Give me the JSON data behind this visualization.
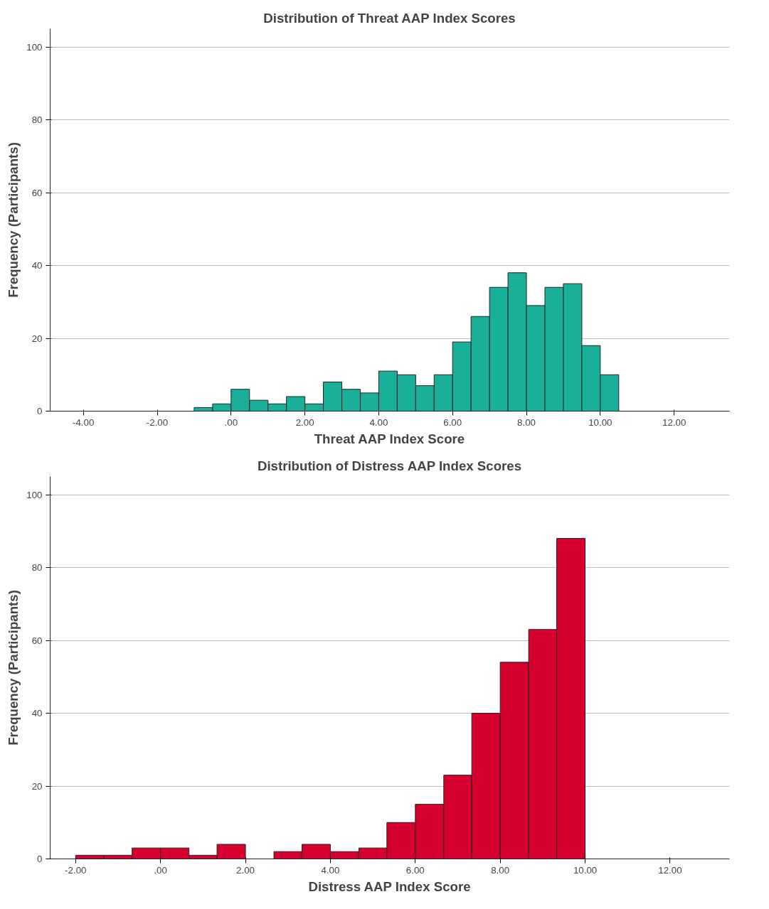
{
  "chart_data": [
    {
      "type": "histogram",
      "title": "Distribution of Threat AAP Index Scores",
      "xlabel": "Threat AAP Index Score",
      "ylabel": "Frequency (Participants)",
      "bins": [
        -1,
        -0.5,
        0,
        0.5,
        1,
        1.5,
        2,
        2.5,
        3,
        3.5,
        4,
        4.5,
        5,
        5.5,
        6,
        6.5,
        7,
        7.5,
        8,
        8.5,
        9,
        9.5,
        10,
        10.5
      ],
      "values": [
        1,
        2,
        6,
        3,
        2,
        4,
        2,
        8,
        6,
        5,
        11,
        10,
        7,
        10,
        19,
        26,
        34,
        38,
        29,
        34,
        35,
        18,
        10
      ],
      "color": "#1aaf98",
      "xlim": [
        -4.9,
        13.5
      ],
      "ylim": [
        0,
        105
      ],
      "xticks": [
        {
          "value": -4,
          "label": "-4.00"
        },
        {
          "value": -2,
          "label": "-2.00"
        },
        {
          "value": 0,
          "label": ".00"
        },
        {
          "value": 2,
          "label": "2.00"
        },
        {
          "value": 4,
          "label": "4.00"
        },
        {
          "value": 6,
          "label": "6.00"
        },
        {
          "value": 8,
          "label": "8.00"
        },
        {
          "value": 10,
          "label": "10.00"
        },
        {
          "value": 12,
          "label": "12.00"
        }
      ],
      "yticks": [
        0,
        20,
        40,
        60,
        80,
        100
      ],
      "grid": "y"
    },
    {
      "type": "histogram",
      "title": "Distribution of Distress AAP Index Scores",
      "xlabel": "Distress AAP Index Score",
      "ylabel": "Frequency (Participants)",
      "bins": [
        -2,
        -1.33,
        -0.67,
        0,
        0.67,
        1.33,
        2,
        2.67,
        3.33,
        4,
        4.67,
        5.33,
        6,
        6.67,
        7.33,
        8,
        8.67,
        9.33,
        10
      ],
      "values": [
        1,
        1,
        3,
        3,
        1,
        4,
        0,
        2,
        4,
        2,
        3,
        10,
        15,
        23,
        40,
        54,
        63,
        88
      ],
      "color": "#d6002e",
      "xlim": [
        -2.6,
        13.4
      ],
      "ylim": [
        0,
        105
      ],
      "xticks": [
        {
          "value": -2,
          "label": "-2.00"
        },
        {
          "value": 0,
          "label": ".00"
        },
        {
          "value": 2,
          "label": "2.00"
        },
        {
          "value": 4,
          "label": "4.00"
        },
        {
          "value": 6,
          "label": "6.00"
        },
        {
          "value": 8,
          "label": "8.00"
        },
        {
          "value": 10,
          "label": "10.00"
        },
        {
          "value": 12,
          "label": "12.00"
        }
      ],
      "yticks": [
        0,
        20,
        40,
        60,
        80,
        100
      ],
      "grid": "y"
    }
  ]
}
